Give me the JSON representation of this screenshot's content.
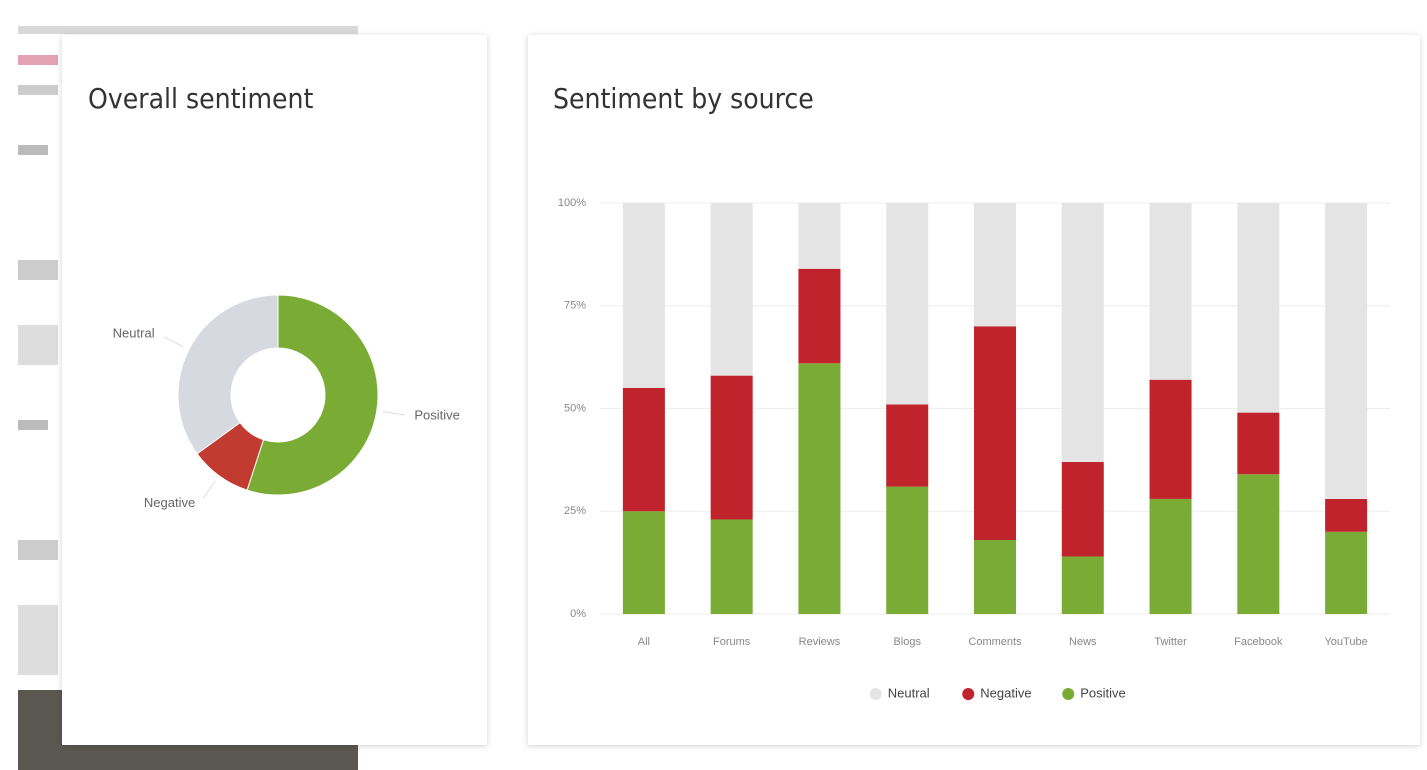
{
  "chart_data": [
    {
      "type": "donut",
      "title": "Overall sentiment",
      "categories": [
        "Positive",
        "Negative",
        "Neutral"
      ],
      "values": [
        55,
        10,
        35
      ],
      "colors": [
        "#7aab34",
        "#c23b30",
        "#d6d9df"
      ]
    },
    {
      "type": "stacked_bar",
      "title": "Sentiment by source",
      "categories": [
        "All",
        "Forums",
        "Reviews",
        "Blogs",
        "Comments",
        "News",
        "Twitter",
        "Facebook",
        "YouTube"
      ],
      "series": [
        {
          "name": "Neutral",
          "color": "#e4e4e4",
          "values": [
            45,
            42,
            16,
            49,
            30,
            63,
            43,
            51,
            72
          ]
        },
        {
          "name": "Negative",
          "color": "#c0232b",
          "values": [
            30,
            35,
            23,
            20,
            52,
            23,
            29,
            15,
            8
          ]
        },
        {
          "name": "Positive",
          "color": "#7aab34",
          "values": [
            25,
            23,
            61,
            31,
            18,
            14,
            28,
            34,
            20
          ]
        }
      ],
      "ylim": [
        0,
        100
      ],
      "yticks": [
        {
          "value": 0,
          "label": "0%"
        },
        {
          "value": 25,
          "label": "25%"
        },
        {
          "value": 50,
          "label": "50%"
        },
        {
          "value": 75,
          "label": "75%"
        },
        {
          "value": 100,
          "label": "100%"
        }
      ],
      "grid": true,
      "legend": "bottom"
    }
  ]
}
